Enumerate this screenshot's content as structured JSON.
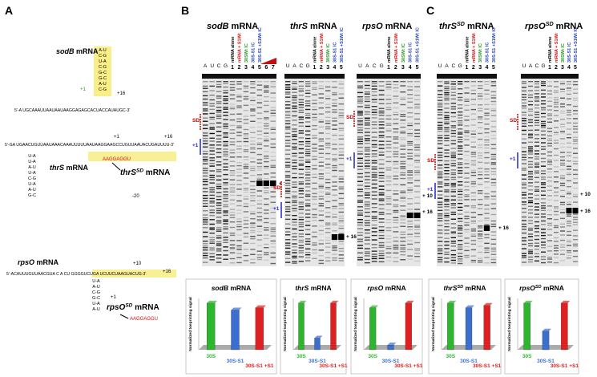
{
  "panel_labels": [
    "A",
    "B",
    "C"
  ],
  "structures": [
    {
      "name": "sodB",
      "suffix": " mRNA",
      "sequence": "5'-A UGCAAAUUAAUAAUAAGGAGAGCACUACCAUAUGC-3'",
      "stem": [
        "A-U",
        "C-G",
        "U-A",
        "C-G",
        "G-C",
        "G-C",
        "A-U",
        "C-G"
      ],
      "marks": [
        "+1",
        "+16"
      ]
    },
    {
      "name": "thrS",
      "suffix": " mRNA",
      "sequence": "5'-GA UGAACUGUUAAUAAACAAAUUUUUAAUAAGGAAGCCUGUUAAUACUGAUUUU-3'",
      "stem": [
        "U-A",
        "U-A",
        "A-U",
        "U-A",
        "C-G",
        "U-A",
        "A-U",
        "G-C"
      ],
      "marks": [
        "+1",
        "+16",
        "-20"
      ],
      "sd": "AAGGAGGU",
      "sd_name": "thrS",
      "sd_sup": "SD"
    },
    {
      "name": "rpsO",
      "suffix": " mRNA",
      "sequence": "5'-ACAUUUGUUAACGUA C A CU GGGGUCUGA UCUUCUAAGUACUG-3'",
      "stem": [
        "U-A",
        "A-U",
        "C-G",
        "G-C",
        "U-A",
        "A-U"
      ],
      "marks": [
        "+10",
        "+16",
        "+1"
      ],
      "sd": "AAGGAGGU",
      "sd_name": "rpsO",
      "sd_sup": "SD"
    }
  ],
  "gels": [
    {
      "name": "sodB",
      "suffix": " mRNA",
      "ladder": [
        "A",
        "U",
        "C",
        "G"
      ],
      "lanes": [
        "mRNA alone",
        "mRNA + S1Wt",
        "30SWt IC",
        "30S-S1 IC",
        "30S-S1 +S1Wt IC"
      ],
      "numbers": [
        "1",
        "2",
        "3",
        "4",
        "5",
        "6",
        "7"
      ],
      "markers": [
        "SD",
        "+1",
        "+ 16"
      ]
    },
    {
      "name": "thrS",
      "suffix": " mRNA",
      "ladder": [
        "U",
        "A",
        "C",
        "G"
      ],
      "lanes": [
        "mRNA alone",
        "mRNA + S1Wt",
        "30SWt IC",
        "30S-S1 IC",
        "30S-S1 +S1Wt IC"
      ],
      "numbers": [
        "1",
        "2",
        "3",
        "4",
        "5"
      ],
      "markers": [
        "SD",
        "+1",
        "+ 16"
      ]
    },
    {
      "name": "rpsO",
      "suffix": " mRNA",
      "ladder": [
        "U",
        "A",
        "C",
        "G"
      ],
      "lanes": [
        "mRNA alone",
        "mRNA + S1Wt",
        "30SWt IC",
        "30S-S1 IC",
        "30S-S1 +S1Wt IC"
      ],
      "numbers": [
        "1",
        "2",
        "3",
        "4",
        "5"
      ],
      "markers": [
        "SD",
        "+1",
        "+ 10",
        "+ 16"
      ]
    },
    {
      "name": "thrS",
      "sup": "SD",
      "suffix": " mRNA",
      "ladder": [
        "U",
        "A",
        "C",
        "G"
      ],
      "lanes": [
        "mRNA alone",
        "mRNA + S1Wt",
        "30SWt IC",
        "30S-S1 IC",
        "30S-S1 +S1Wt IC"
      ],
      "numbers": [
        "1",
        "2",
        "3",
        "4",
        "5"
      ],
      "markers": [
        "SD",
        "+1",
        "+ 16"
      ]
    },
    {
      "name": "rpsO",
      "sup": "SD",
      "suffix": " mRNA",
      "ladder": [
        "U",
        "A",
        "C",
        "G"
      ],
      "lanes": [
        "mRNA alone",
        "mRNA + S1Wt",
        "30SWt IC",
        "30S-S1 IC",
        "30S-S1 +S1Wt IC"
      ],
      "numbers": [
        "1",
        "2",
        "3",
        "4",
        "5"
      ],
      "markers": [
        "SD",
        "+1",
        "+ 10",
        "+ 16"
      ]
    }
  ],
  "chart_data": [
    {
      "type": "bar",
      "name": "sodB",
      "suffix": " mRNA",
      "ylabel": "Normalized toeprinting signal",
      "categories": [
        "30S",
        "30S-S1",
        "30S-S1 +S1"
      ],
      "values": [
        1.0,
        0.85,
        0.9
      ],
      "colors": [
        "#2db52d",
        "#3a6fd0",
        "#e02020"
      ],
      "ylim": [
        0,
        1.1
      ]
    },
    {
      "type": "bar",
      "name": "thrS",
      "suffix": " mRNA",
      "ylabel": "Normalized toeprinting signal",
      "categories": [
        "30S",
        "30S-S1",
        "30S-S1 +S1"
      ],
      "values": [
        1.0,
        0.25,
        1.0
      ],
      "colors": [
        "#2db52d",
        "#3a6fd0",
        "#e02020"
      ],
      "ylim": [
        0,
        1.1
      ]
    },
    {
      "type": "bar",
      "name": "rpsO",
      "suffix": " mRNA",
      "ylabel": "Normalized toeprinting signal",
      "categories": [
        "30S",
        "30S-S1",
        "30S-S1 +S1"
      ],
      "values": [
        0.9,
        0.1,
        1.0
      ],
      "colors": [
        "#2db52d",
        "#3a6fd0",
        "#e02020"
      ],
      "ylim": [
        0,
        1.1
      ]
    },
    {
      "type": "bar",
      "name": "thrS",
      "sup": "SD",
      "suffix": " mRNA",
      "ylabel": "Normalized toeprinting signal",
      "categories": [
        "30S",
        "30S-S1",
        "30S-S1 +S1"
      ],
      "values": [
        1.0,
        0.9,
        0.95
      ],
      "colors": [
        "#2db52d",
        "#3a6fd0",
        "#e02020"
      ],
      "ylim": [
        0,
        1.1
      ]
    },
    {
      "type": "bar",
      "name": "rpsO",
      "sup": "SD",
      "suffix": " mRNA",
      "ylabel": "Normalized toeprinting signal",
      "categories": [
        "30S",
        "30S-S1",
        "30S-S1 +S1"
      ],
      "values": [
        1.0,
        0.4,
        1.0
      ],
      "colors": [
        "#2db52d",
        "#3a6fd0",
        "#e02020"
      ],
      "ylim": [
        0,
        1.1
      ]
    }
  ]
}
